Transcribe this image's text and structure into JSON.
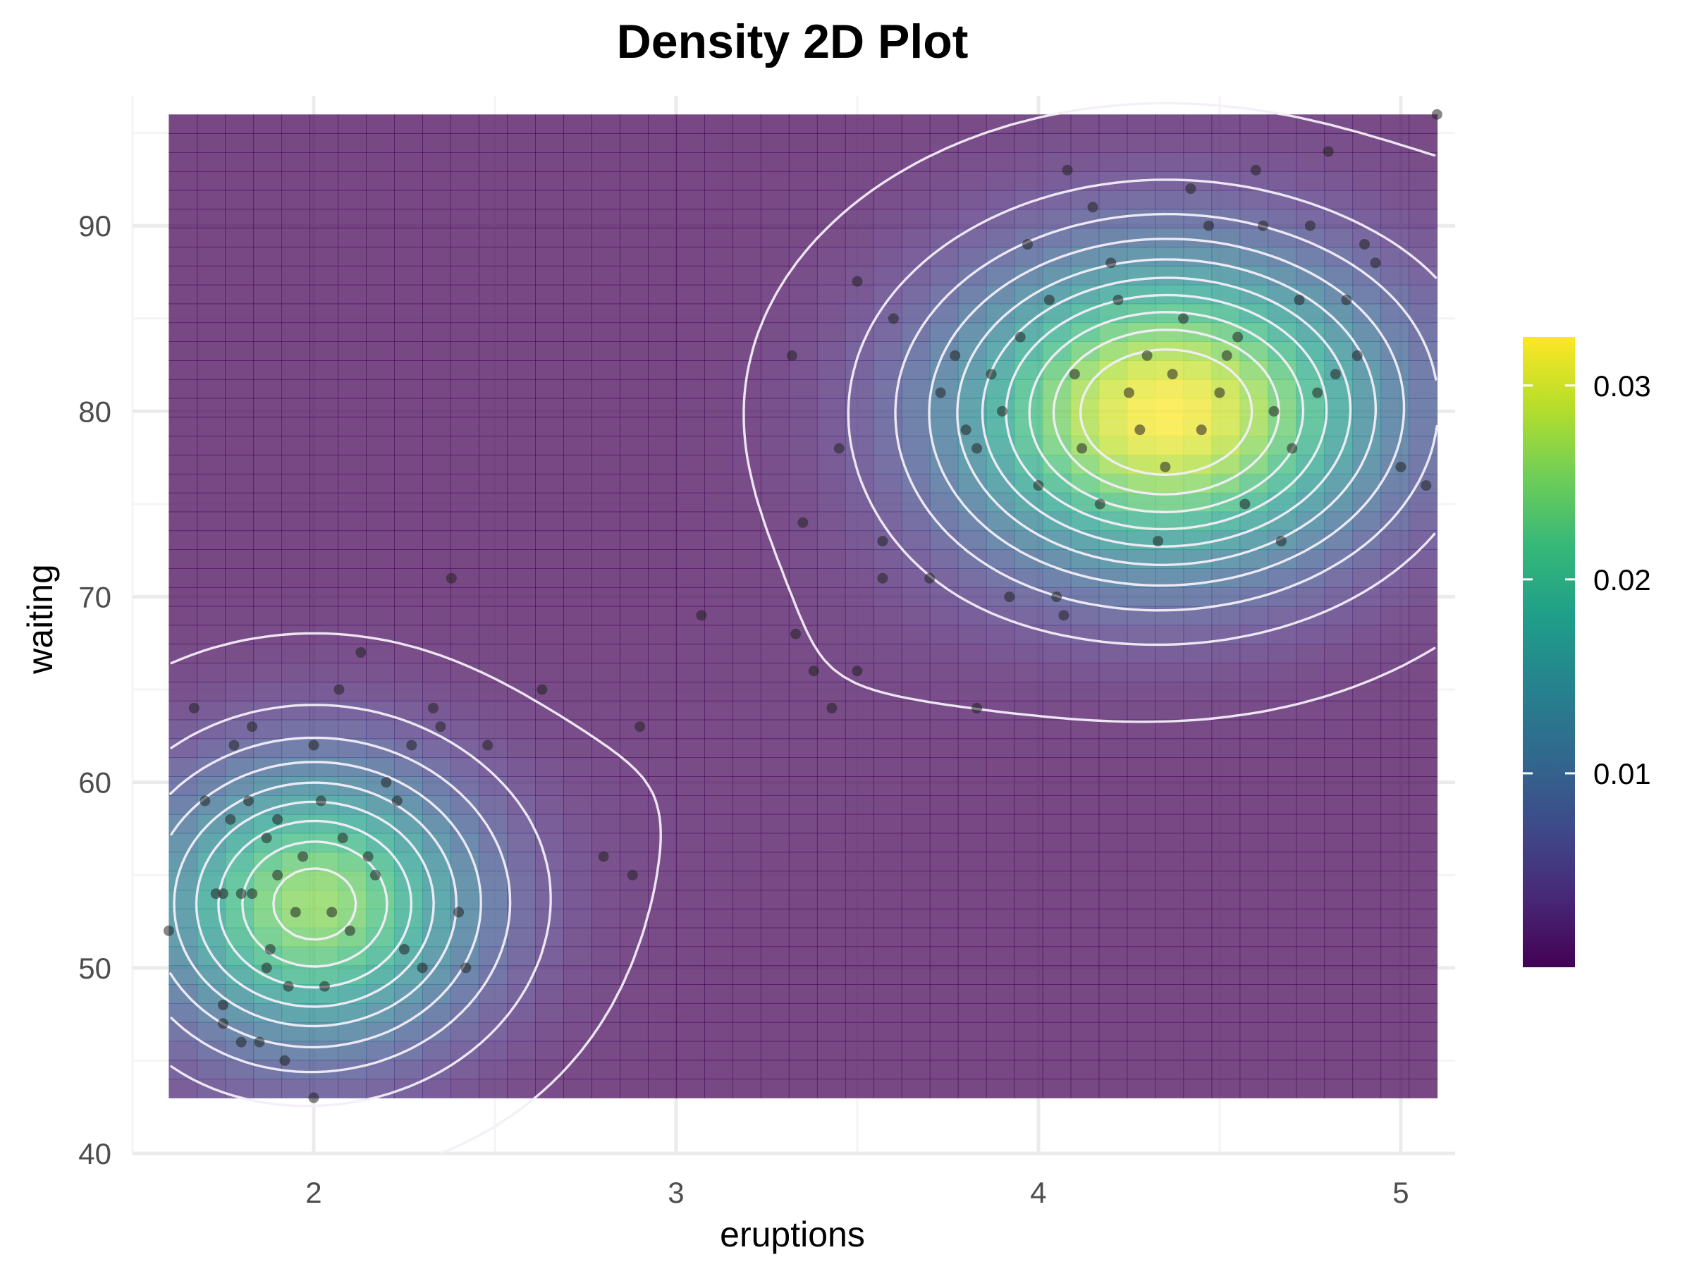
{
  "colors": {
    "panel_grid_major": "#ebebeb",
    "panel_grid_minor": "#f4f4f4",
    "contour_line": "#f3eef8",
    "point": "#222222",
    "viridis": [
      "#440154",
      "#482878",
      "#3e4a89",
      "#31688e",
      "#26828e",
      "#1f9e89",
      "#35b779",
      "#6ece58",
      "#b5de2b",
      "#fde725"
    ]
  },
  "chart_data": {
    "type": "heatmap",
    "title": "Density 2D Plot",
    "xlabel": "eruptions",
    "ylabel": "waiting",
    "xlim": [
      1.5,
      5.15
    ],
    "ylim": [
      40,
      97
    ],
    "x_ticks": [
      "2",
      "3",
      "4",
      "5"
    ],
    "y_ticks": [
      "40",
      "50",
      "60",
      "70",
      "80",
      "90"
    ],
    "grid": true,
    "legend": {
      "position": "right",
      "title": "",
      "range": [
        0,
        0.0325
      ],
      "ticks": [
        "0.01",
        "0.02",
        "0.03"
      ]
    },
    "density_tile_extent": {
      "x": [
        1.6,
        5.1
      ],
      "y": [
        43,
        96
      ]
    },
    "density_modes": [
      {
        "x": 2.0,
        "y": 53.5,
        "peak": 0.026
      },
      {
        "x": 4.35,
        "y": 80.0,
        "peak": 0.032
      }
    ],
    "contour_levels": 10,
    "points": [
      [
        1.6,
        52
      ],
      [
        1.67,
        64
      ],
      [
        1.7,
        59
      ],
      [
        1.73,
        54
      ],
      [
        1.75,
        54
      ],
      [
        1.75,
        47
      ],
      [
        1.75,
        48
      ],
      [
        1.77,
        58
      ],
      [
        1.78,
        62
      ],
      [
        1.8,
        46
      ],
      [
        1.8,
        54
      ],
      [
        1.82,
        59
      ],
      [
        1.83,
        54
      ],
      [
        1.83,
        63
      ],
      [
        1.85,
        46
      ],
      [
        1.87,
        57
      ],
      [
        1.87,
        50
      ],
      [
        1.88,
        51
      ],
      [
        1.9,
        58
      ],
      [
        1.9,
        55
      ],
      [
        1.92,
        45
      ],
      [
        1.93,
        49
      ],
      [
        1.95,
        53
      ],
      [
        1.97,
        56
      ],
      [
        2.0,
        62
      ],
      [
        2.0,
        43
      ],
      [
        2.02,
        59
      ],
      [
        2.03,
        49
      ],
      [
        2.05,
        53
      ],
      [
        2.07,
        65
      ],
      [
        2.08,
        57
      ],
      [
        2.1,
        52
      ],
      [
        2.13,
        67
      ],
      [
        2.15,
        56
      ],
      [
        2.17,
        55
      ],
      [
        2.2,
        60
      ],
      [
        2.23,
        59
      ],
      [
        2.25,
        51
      ],
      [
        2.27,
        62
      ],
      [
        2.3,
        50
      ],
      [
        2.33,
        64
      ],
      [
        2.35,
        63
      ],
      [
        2.38,
        71
      ],
      [
        2.4,
        53
      ],
      [
        2.42,
        50
      ],
      [
        2.48,
        62
      ],
      [
        2.63,
        65
      ],
      [
        2.8,
        56
      ],
      [
        2.88,
        55
      ],
      [
        2.9,
        63
      ],
      [
        3.07,
        69
      ],
      [
        3.32,
        83
      ],
      [
        3.33,
        68
      ],
      [
        3.35,
        74
      ],
      [
        3.38,
        66
      ],
      [
        3.43,
        64
      ],
      [
        3.45,
        78
      ],
      [
        3.5,
        66
      ],
      [
        3.5,
        87
      ],
      [
        3.57,
        73
      ],
      [
        3.57,
        71
      ],
      [
        3.6,
        85
      ],
      [
        3.7,
        71
      ],
      [
        3.73,
        81
      ],
      [
        3.77,
        83
      ],
      [
        3.8,
        79
      ],
      [
        3.83,
        64
      ],
      [
        3.83,
        78
      ],
      [
        3.87,
        82
      ],
      [
        3.9,
        80
      ],
      [
        3.92,
        70
      ],
      [
        3.95,
        84
      ],
      [
        3.97,
        89
      ],
      [
        4.0,
        76
      ],
      [
        4.03,
        86
      ],
      [
        4.05,
        70
      ],
      [
        4.07,
        69
      ],
      [
        4.08,
        93
      ],
      [
        4.1,
        82
      ],
      [
        4.12,
        78
      ],
      [
        4.15,
        91
      ],
      [
        4.17,
        75
      ],
      [
        4.2,
        88
      ],
      [
        4.22,
        86
      ],
      [
        4.25,
        81
      ],
      [
        4.28,
        79
      ],
      [
        4.3,
        83
      ],
      [
        4.33,
        73
      ],
      [
        4.35,
        77
      ],
      [
        4.37,
        82
      ],
      [
        4.4,
        85
      ],
      [
        4.42,
        92
      ],
      [
        4.45,
        79
      ],
      [
        4.47,
        90
      ],
      [
        4.5,
        81
      ],
      [
        4.52,
        83
      ],
      [
        4.55,
        84
      ],
      [
        4.57,
        75
      ],
      [
        4.6,
        93
      ],
      [
        4.62,
        90
      ],
      [
        4.65,
        80
      ],
      [
        4.67,
        73
      ],
      [
        4.7,
        78
      ],
      [
        4.72,
        86
      ],
      [
        4.75,
        90
      ],
      [
        4.77,
        81
      ],
      [
        4.8,
        94
      ],
      [
        4.82,
        82
      ],
      [
        4.85,
        86
      ],
      [
        4.88,
        83
      ],
      [
        4.9,
        89
      ],
      [
        4.93,
        88
      ],
      [
        5.0,
        77
      ],
      [
        5.07,
        76
      ],
      [
        5.1,
        96
      ]
    ]
  }
}
